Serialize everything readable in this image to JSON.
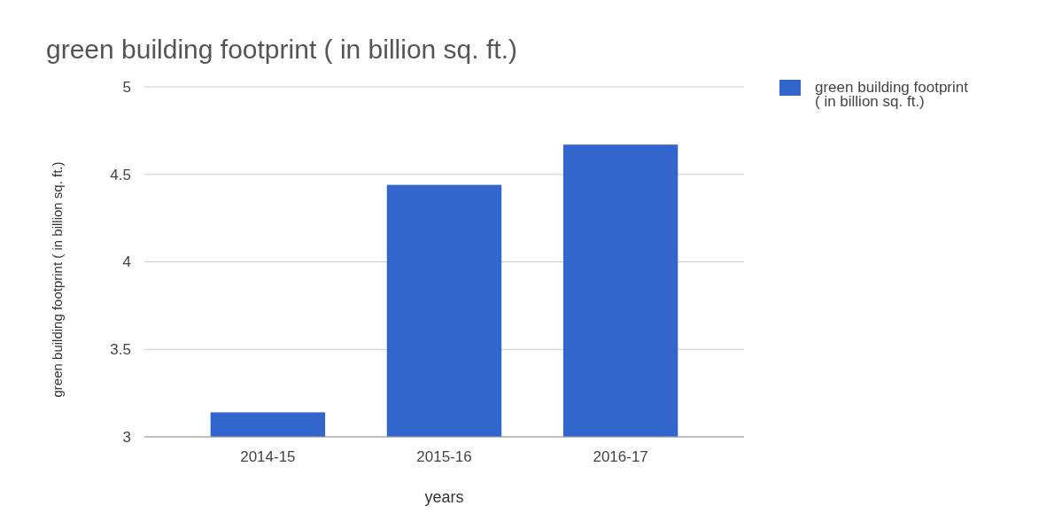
{
  "chart_data": {
    "type": "bar",
    "title": "green building footprint ( in billion sq. ft.)",
    "xlabel": "years",
    "ylabel": "green building footprint ( in billion sq. ft.)",
    "categories": [
      "2014-15",
      "2015-16",
      "2016-17"
    ],
    "series": [
      {
        "name": "green building footprint ( in billion sq. ft.)",
        "color": "#3366cc",
        "values": [
          3.14,
          4.44,
          4.67
        ]
      }
    ],
    "ylim": [
      3,
      5
    ],
    "yticks": [
      3,
      3.5,
      4,
      4.5,
      5
    ],
    "grid": "y",
    "legend": "top right"
  }
}
